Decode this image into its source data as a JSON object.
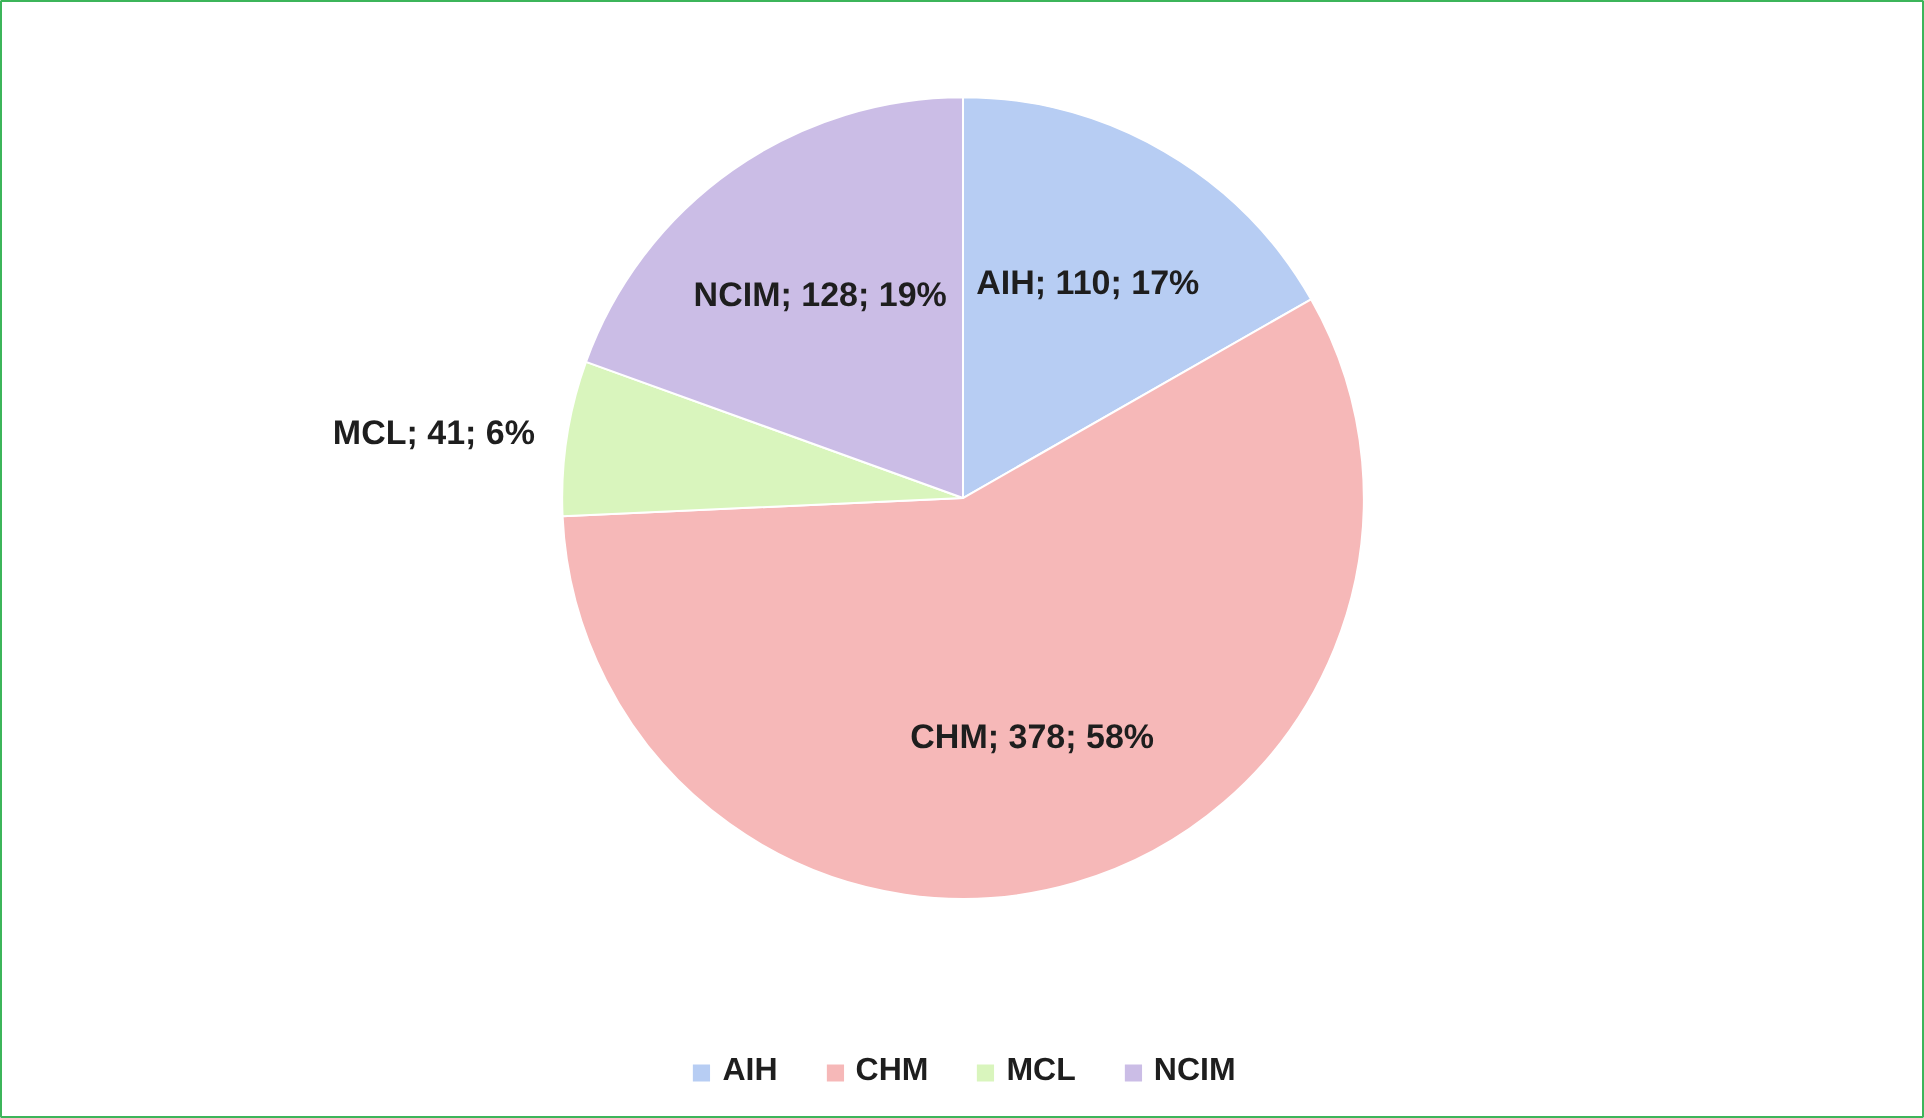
{
  "chart_data": {
    "type": "pie",
    "categories": [
      "AIH",
      "CHM",
      "MCL",
      "NCIM"
    ],
    "values": [
      110,
      378,
      41,
      128
    ],
    "colors": [
      "#b7cdf3",
      "#f6b8b8",
      "#d9f5bd",
      "#cbbde6"
    ],
    "value_labels": [
      "AIH; 110; 17%",
      "CHM; 378; 58%",
      "MCL; 41; 6%",
      "NCIM; 128; 19%"
    ],
    "legend": "bottom"
  }
}
